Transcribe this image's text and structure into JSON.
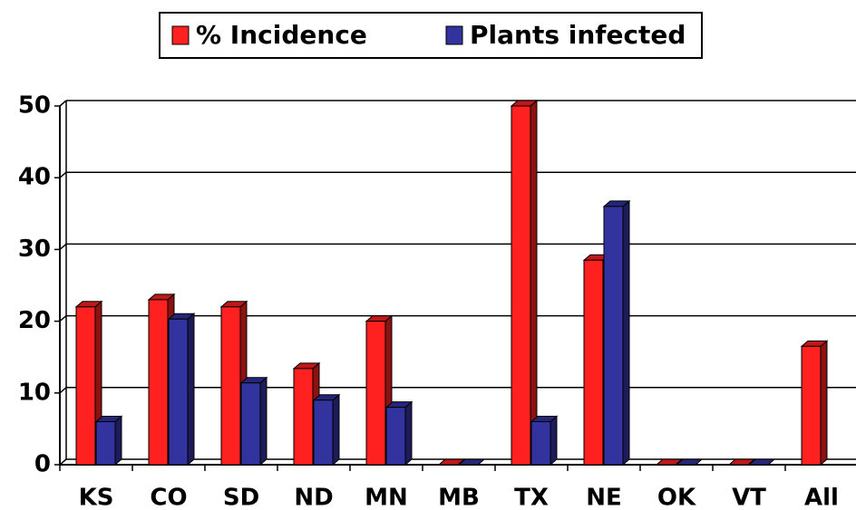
{
  "chart_data": {
    "type": "bar",
    "categories": [
      "KS",
      "CO",
      "SD",
      "ND",
      "MN",
      "MB",
      "TX",
      "NE",
      "OK",
      "VT",
      "All"
    ],
    "series": [
      {
        "name": "% Incidence",
        "color": "#ff2020",
        "values": [
          22,
          23,
          22,
          13.4,
          20,
          0,
          50,
          28.5,
          0,
          0,
          16.5
        ]
      },
      {
        "name": "Plants infected",
        "color": "#3333a0",
        "values": [
          6,
          20.3,
          11.4,
          9,
          8,
          0,
          6,
          36,
          0,
          0,
          null
        ]
      }
    ],
    "ylim": [
      0,
      50
    ],
    "yticks": [
      0,
      10,
      20,
      30,
      40,
      50
    ],
    "grid": true,
    "legend": "top"
  }
}
